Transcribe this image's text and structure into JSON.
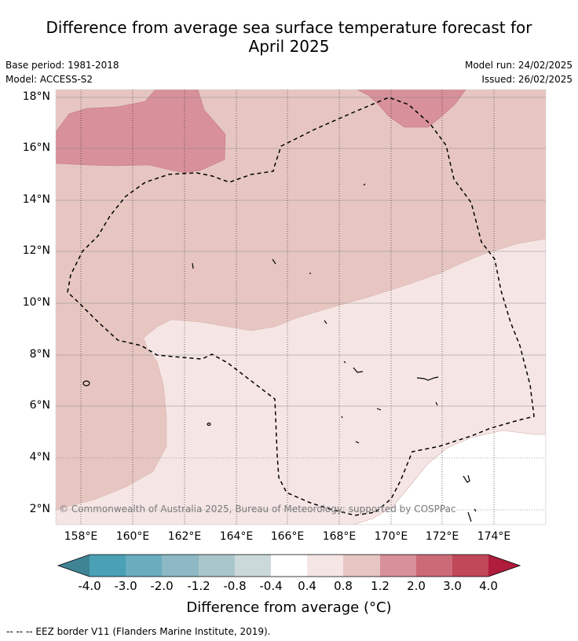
{
  "title_line1": "Difference from average sea surface temperature forecast for",
  "title_line2": "April 2025",
  "base_period": "Base period: 1981-2018",
  "model": "Model: ACCESS-S2",
  "model_run": "Model run: 24/02/2025",
  "issued": "Issued: 26/02/2025",
  "lat_labels": [
    "18°N",
    "16°N",
    "14°N",
    "12°N",
    "10°N",
    "8°N",
    "6°N",
    "4°N",
    "2°N"
  ],
  "lon_labels": [
    "158°E",
    "160°E",
    "162°E",
    "164°E",
    "166°E",
    "168°E",
    "170°E",
    "172°E",
    "174°E"
  ],
  "copyright": "© Commonwealth of Australia 2025, Bureau of Meteorology; supported by COSPPac",
  "colorbar": {
    "tick_labels": [
      "-4.0",
      "-3.0",
      "-2.0",
      "-1.2",
      "-0.8",
      "-0.4",
      "0.4",
      "0.8",
      "1.2",
      "2.0",
      "3.0",
      "4.0"
    ],
    "colors": [
      "#3e8494",
      "#4aa0b4",
      "#6aadbf",
      "#8db8c4",
      "#a9c6cb",
      "#ccd9da",
      "#ffffff",
      "#f5e6e5",
      "#e7c6c1",
      "#d89099",
      "#cc6a78",
      "#c04858",
      "#b01c3c"
    ],
    "title": "Difference from average (°C)"
  },
  "footer": "-- -- -- EEZ border V11 (Flanders Marine Institute, 2019)."
}
